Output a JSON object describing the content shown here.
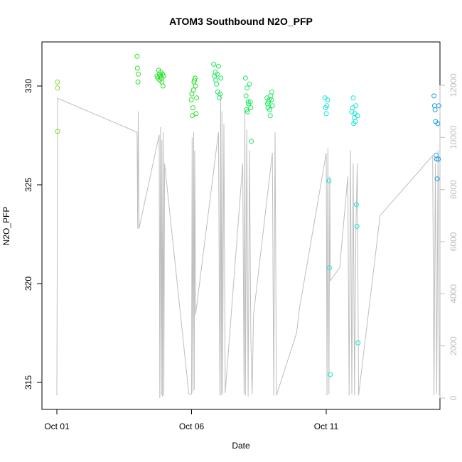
{
  "chart_data": {
    "type": "scatter",
    "title": "ATOM3 Southbound N2O_PFP",
    "xlabel": "Date",
    "ylabel": "N2O_PFP",
    "x_range_days": [
      0,
      14.3
    ],
    "x_ticks": [
      {
        "day": 0,
        "label": "Oct 01"
      },
      {
        "day": 5,
        "label": "Oct 06"
      },
      {
        "day": 10,
        "label": "Oct 11"
      }
    ],
    "ylim": [
      314.2,
      332.3
    ],
    "y_ticks": [
      315,
      320,
      325,
      330
    ],
    "y2lim": [
      -300,
      12900
    ],
    "y2_ticks": [
      0,
      2000,
      4000,
      6000,
      8000,
      10000,
      12000
    ],
    "y2_color": "#bebebe",
    "grid": false,
    "legend": "none",
    "series": [
      {
        "color": "#8bd632",
        "points": [
          [
            0.02,
            330.2
          ],
          [
            0.02,
            329.9
          ],
          [
            0.03,
            327.7
          ]
        ]
      },
      {
        "color": "#2adf2a",
        "points": [
          [
            2.98,
            331.5
          ],
          [
            2.99,
            330.9
          ],
          [
            3.02,
            330.6
          ],
          [
            3.01,
            330.2
          ],
          [
            3.72,
            330.5
          ],
          [
            3.75,
            330.4
          ],
          [
            3.78,
            330.8
          ],
          [
            3.8,
            330.6
          ],
          [
            3.82,
            330.3
          ],
          [
            3.84,
            330.5
          ],
          [
            3.86,
            330.7
          ],
          [
            3.88,
            330.4
          ],
          [
            3.9,
            330.2
          ],
          [
            3.92,
            330.6
          ],
          [
            3.94,
            330.0
          ],
          [
            3.96,
            330.5
          ],
          [
            4.99,
            329.3
          ],
          [
            5.01,
            329.6
          ],
          [
            5.03,
            328.5
          ],
          [
            5.05,
            328.9
          ],
          [
            5.07,
            329.8
          ],
          [
            5.09,
            330.2
          ],
          [
            5.11,
            330.3
          ],
          [
            5.13,
            330.4
          ],
          [
            5.15,
            330.0
          ],
          [
            5.17,
            328.6
          ],
          [
            5.19,
            329.4
          ]
        ]
      },
      {
        "color": "#18e85e",
        "points": [
          [
            5.82,
            331.1
          ],
          [
            5.85,
            330.5
          ],
          [
            5.88,
            330.7
          ],
          [
            5.9,
            330.3
          ],
          [
            5.93,
            330.1
          ],
          [
            5.95,
            330.6
          ],
          [
            5.97,
            329.7
          ],
          [
            6.0,
            331.0
          ],
          [
            6.03,
            329.4
          ],
          [
            6.06,
            329.6
          ],
          [
            6.09,
            330.4
          ],
          [
            7.0,
            330.4
          ],
          [
            7.02,
            329.5
          ],
          [
            7.04,
            328.8
          ],
          [
            7.06,
            329.9
          ],
          [
            7.08,
            328.7
          ],
          [
            7.1,
            329.2
          ],
          [
            7.12,
            329.1
          ],
          [
            7.15,
            330.1
          ],
          [
            7.18,
            329.2
          ],
          [
            7.2,
            328.9
          ],
          [
            7.22,
            327.2
          ],
          [
            7.8,
            329.4
          ],
          [
            7.82,
            329.1
          ],
          [
            7.84,
            328.9
          ],
          [
            7.86,
            329.2
          ],
          [
            7.88,
            329.3
          ],
          [
            7.9,
            328.8
          ],
          [
            7.92,
            328.5
          ],
          [
            7.94,
            329.5
          ],
          [
            7.96,
            329.3
          ],
          [
            7.98,
            329.7
          ],
          [
            8.0,
            329.0
          ]
        ]
      },
      {
        "color": "#12e6d6",
        "points": [
          [
            9.95,
            329.4
          ],
          [
            9.98,
            328.9
          ],
          [
            10.0,
            328.6
          ],
          [
            10.02,
            329.0
          ],
          [
            10.05,
            329.3
          ],
          [
            10.1,
            325.2
          ],
          [
            10.12,
            320.8
          ],
          [
            10.15,
            315.4
          ],
          [
            10.95,
            328.7
          ],
          [
            10.98,
            328.9
          ],
          [
            11.0,
            329.4
          ],
          [
            11.02,
            328.1
          ],
          [
            11.04,
            328.4
          ],
          [
            11.06,
            328.6
          ],
          [
            11.08,
            328.2
          ],
          [
            11.1,
            329.0
          ],
          [
            11.12,
            324.0
          ],
          [
            11.14,
            322.9
          ],
          [
            11.16,
            328.5
          ],
          [
            11.18,
            317.0
          ]
        ]
      },
      {
        "color": "#1a9be0",
        "points": [
          [
            14.0,
            329.5
          ],
          [
            14.02,
            329.0
          ],
          [
            14.04,
            328.8
          ],
          [
            14.06,
            328.2
          ],
          [
            14.08,
            326.5
          ],
          [
            14.1,
            326.3
          ],
          [
            14.12,
            325.3
          ],
          [
            14.14,
            328.1
          ],
          [
            14.16,
            326.3
          ],
          [
            14.18,
            329.0
          ]
        ]
      }
    ],
    "secondary_line": {
      "color": "#bebebe",
      "points": [
        [
          0.0,
          100
        ],
        [
          0.03,
          11500
        ],
        [
          2.98,
          10200
        ],
        [
          3.0,
          6500
        ],
        [
          3.02,
          11000
        ],
        [
          3.05,
          6500
        ],
        [
          3.8,
          10100
        ],
        [
          3.82,
          0
        ],
        [
          3.85,
          10400
        ],
        [
          3.88,
          100
        ],
        [
          3.9,
          9900
        ],
        [
          3.92,
          50
        ],
        [
          3.95,
          10200
        ],
        [
          3.97,
          100
        ],
        [
          4.0,
          9000
        ],
        [
          4.9,
          150
        ],
        [
          5.0,
          150
        ],
        [
          5.02,
          10000
        ],
        [
          5.05,
          200
        ],
        [
          5.08,
          10200
        ],
        [
          5.1,
          300
        ],
        [
          5.12,
          9500
        ],
        [
          5.15,
          3200
        ],
        [
          6.0,
          10200
        ],
        [
          6.05,
          100
        ],
        [
          6.08,
          11700
        ],
        [
          6.1,
          100
        ],
        [
          6.13,
          11000
        ],
        [
          6.15,
          150
        ],
        [
          6.2,
          10500
        ],
        [
          6.25,
          200
        ],
        [
          6.9,
          9000
        ],
        [
          6.95,
          150
        ],
        [
          6.98,
          11000
        ],
        [
          7.0,
          100
        ],
        [
          7.05,
          10300
        ],
        [
          7.1,
          50
        ],
        [
          7.15,
          9500
        ],
        [
          7.2,
          2300
        ],
        [
          7.25,
          150
        ],
        [
          7.3,
          3200
        ],
        [
          8.0,
          9400
        ],
        [
          8.05,
          100
        ],
        [
          8.1,
          10200
        ],
        [
          8.15,
          100
        ],
        [
          8.9,
          2500
        ],
        [
          9.0,
          3400
        ],
        [
          10.0,
          9400
        ],
        [
          10.03,
          100
        ],
        [
          10.06,
          9600
        ],
        [
          10.1,
          150
        ],
        [
          10.13,
          8500
        ],
        [
          10.15,
          4500
        ],
        [
          10.5,
          5000
        ],
        [
          10.8,
          8500
        ],
        [
          10.85,
          100
        ],
        [
          10.9,
          9500
        ],
        [
          10.95,
          150
        ],
        [
          11.0,
          9000
        ],
        [
          11.05,
          100
        ],
        [
          11.1,
          6500
        ],
        [
          11.15,
          9000
        ],
        [
          11.2,
          100
        ],
        [
          12.0,
          7000
        ],
        [
          13.95,
          9300
        ],
        [
          14.0,
          100
        ],
        [
          14.05,
          9000
        ],
        [
          14.1,
          150
        ],
        [
          14.15,
          9500
        ],
        [
          14.2,
          100
        ]
      ]
    }
  }
}
